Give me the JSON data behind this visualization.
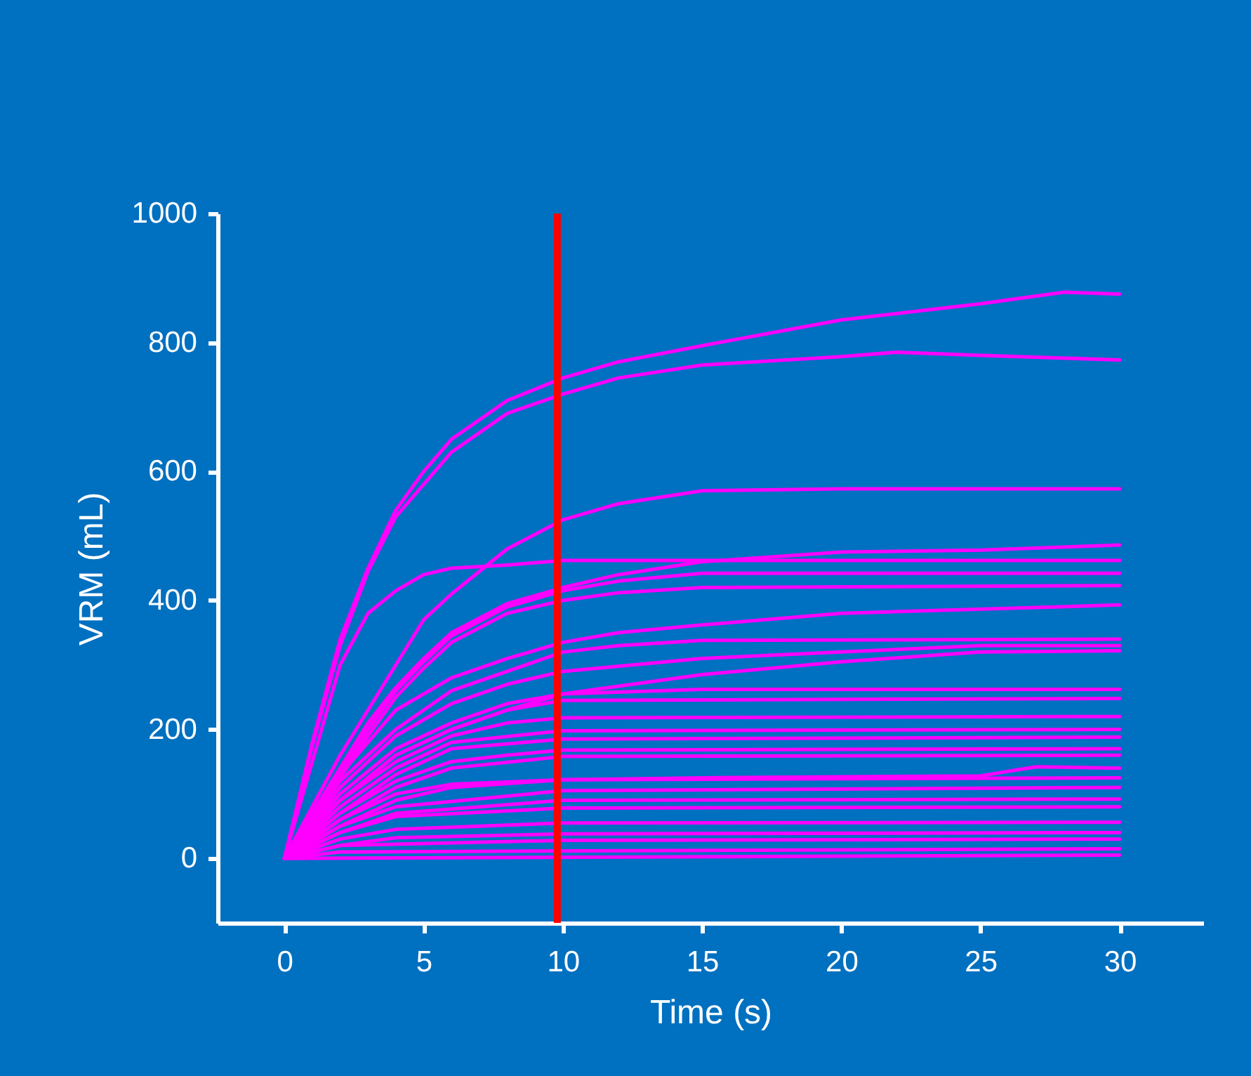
{
  "chart_data": {
    "type": "line",
    "xlabel": "Time (s)",
    "ylabel": "VRM (mL)",
    "xlim": [
      -2.4,
      33
    ],
    "ylim": [
      -100,
      1000
    ],
    "xticks": [
      0,
      5,
      10,
      15,
      20,
      25,
      30
    ],
    "yticks": [
      0,
      200,
      400,
      600,
      800,
      1000
    ],
    "grid": false,
    "ref_lines": [
      {
        "axis": "x",
        "value": 9.8,
        "color": "#ff0000"
      }
    ],
    "series": [
      {
        "color": "#ff00ff",
        "x": [
          0,
          1,
          2,
          3,
          4,
          5,
          6,
          8,
          10,
          12,
          15,
          20,
          25,
          28,
          30
        ],
        "values": [
          0,
          180,
          340,
          450,
          540,
          600,
          650,
          710,
          745,
          770,
          795,
          835,
          860,
          878,
          875
        ]
      },
      {
        "color": "#ff00ff",
        "x": [
          0,
          1,
          2,
          3,
          4,
          5,
          6,
          8,
          10,
          12,
          15,
          20,
          22,
          25,
          30
        ],
        "values": [
          0,
          175,
          330,
          445,
          530,
          580,
          630,
          690,
          720,
          745,
          765,
          778,
          785,
          780,
          773
        ]
      },
      {
        "color": "#ff00ff",
        "x": [
          0,
          1,
          2,
          3,
          4,
          5,
          6,
          8,
          10,
          12,
          15,
          20,
          30
        ],
        "values": [
          0,
          80,
          160,
          230,
          300,
          370,
          410,
          480,
          525,
          550,
          570,
          573,
          573
        ]
      },
      {
        "color": "#ff00ff",
        "x": [
          0,
          1,
          2,
          3,
          4,
          5,
          6,
          8,
          10,
          30
        ],
        "values": [
          0,
          150,
          300,
          380,
          415,
          440,
          450,
          455,
          462,
          462
        ]
      },
      {
        "color": "#ff00ff",
        "x": [
          0,
          1,
          2,
          3,
          4,
          5,
          6,
          8,
          10,
          12,
          15,
          20,
          25,
          30
        ],
        "values": [
          0,
          70,
          140,
          210,
          265,
          310,
          350,
          395,
          420,
          440,
          460,
          475,
          478,
          486
        ]
      },
      {
        "color": "#ff00ff",
        "x": [
          0,
          1,
          2,
          3,
          4,
          5,
          6,
          8,
          10,
          12,
          15,
          30
        ],
        "values": [
          0,
          65,
          130,
          200,
          260,
          305,
          345,
          390,
          415,
          430,
          442,
          442
        ]
      },
      {
        "color": "#ff00ff",
        "x": [
          0,
          1,
          2,
          3,
          4,
          5,
          6,
          8,
          10,
          12,
          15,
          30
        ],
        "values": [
          0,
          60,
          125,
          190,
          250,
          295,
          335,
          380,
          400,
          412,
          420,
          423
        ]
      },
      {
        "color": "#ff00ff",
        "x": [
          0,
          2,
          4,
          6,
          8,
          10,
          12,
          15,
          20,
          30
        ],
        "values": [
          0,
          130,
          230,
          280,
          310,
          335,
          350,
          362,
          380,
          393
        ]
      },
      {
        "color": "#ff00ff",
        "x": [
          0,
          2,
          4,
          6,
          8,
          10,
          12,
          15,
          30
        ],
        "values": [
          0,
          120,
          200,
          260,
          290,
          320,
          330,
          338,
          340
        ]
      },
      {
        "color": "#ff00ff",
        "x": [
          0,
          2,
          4,
          6,
          8,
          10,
          15,
          20,
          25,
          30
        ],
        "values": [
          0,
          110,
          190,
          240,
          270,
          290,
          310,
          320,
          330,
          330
        ]
      },
      {
        "color": "#ff00ff",
        "x": [
          0,
          2,
          4,
          6,
          8,
          10,
          15,
          20,
          25,
          30
        ],
        "values": [
          0,
          90,
          160,
          200,
          230,
          255,
          285,
          305,
          320,
          322
        ]
      },
      {
        "color": "#ff00ff",
        "x": [
          0,
          2,
          4,
          6,
          8,
          10,
          15,
          30
        ],
        "values": [
          0,
          100,
          170,
          210,
          240,
          255,
          262,
          262
        ]
      },
      {
        "color": "#ff00ff",
        "x": [
          0,
          2,
          4,
          6,
          8,
          10,
          30
        ],
        "values": [
          0,
          90,
          160,
          200,
          230,
          245,
          248
        ]
      },
      {
        "color": "#ff00ff",
        "x": [
          0,
          2,
          4,
          6,
          8,
          10,
          30
        ],
        "values": [
          0,
          90,
          150,
          190,
          210,
          218,
          220
        ]
      },
      {
        "color": "#ff00ff",
        "x": [
          0,
          2,
          4,
          6,
          10,
          30
        ],
        "values": [
          0,
          80,
          140,
          180,
          198,
          200
        ]
      },
      {
        "color": "#ff00ff",
        "x": [
          0,
          2,
          4,
          6,
          10,
          30
        ],
        "values": [
          0,
          70,
          130,
          170,
          185,
          188
        ]
      },
      {
        "color": "#ff00ff",
        "x": [
          0,
          2,
          4,
          6,
          8,
          10,
          30
        ],
        "values": [
          0,
          70,
          120,
          150,
          160,
          168,
          170
        ]
      },
      {
        "color": "#ff00ff",
        "x": [
          0,
          2,
          4,
          6,
          10,
          30
        ],
        "values": [
          0,
          60,
          110,
          140,
          158,
          160
        ]
      },
      {
        "color": "#ff00ff",
        "x": [
          0,
          2,
          4,
          6,
          10,
          15,
          25,
          27,
          30
        ],
        "values": [
          0,
          50,
          90,
          110,
          122,
          125,
          128,
          142,
          140
        ]
      },
      {
        "color": "#ff00ff",
        "x": [
          0,
          2,
          4,
          6,
          10,
          30
        ],
        "values": [
          0,
          60,
          100,
          115,
          122,
          125
        ]
      },
      {
        "color": "#ff00ff",
        "x": [
          0,
          2,
          4,
          10,
          30
        ],
        "values": [
          0,
          50,
          80,
          105,
          110
        ]
      },
      {
        "color": "#ff00ff",
        "x": [
          0,
          2,
          4,
          10,
          30
        ],
        "values": [
          0,
          40,
          70,
          90,
          92
        ]
      },
      {
        "color": "#ff00ff",
        "x": [
          0,
          2,
          4,
          10,
          30
        ],
        "values": [
          0,
          40,
          65,
          78,
          80
        ]
      },
      {
        "color": "#ff00ff",
        "x": [
          0,
          2,
          4,
          10,
          30
        ],
        "values": [
          0,
          30,
          45,
          55,
          56
        ]
      },
      {
        "color": "#ff00ff",
        "x": [
          0,
          2,
          4,
          10,
          30
        ],
        "values": [
          0,
          20,
          32,
          38,
          40
        ]
      },
      {
        "color": "#ff00ff",
        "x": [
          0,
          2,
          10,
          30
        ],
        "values": [
          0,
          20,
          28,
          30
        ]
      },
      {
        "color": "#ff00ff",
        "x": [
          0,
          2,
          30
        ],
        "values": [
          0,
          10,
          15
        ]
      },
      {
        "color": "#ff00ff",
        "x": [
          0,
          30
        ],
        "values": [
          0,
          5
        ]
      }
    ]
  }
}
